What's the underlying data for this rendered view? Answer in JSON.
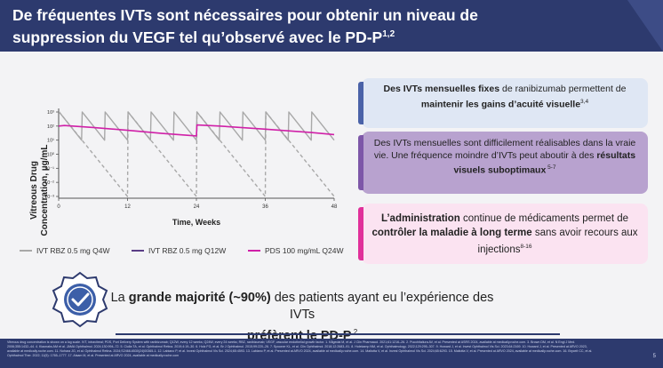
{
  "header": {
    "title_line1": "De fréquentes IVTs sont nécessaires pour obtenir un niveau de",
    "title_line2": "suppression du VEGF tel qu’observé avec le PD-P",
    "title_sup": "1,2"
  },
  "chart_data": {
    "type": "line",
    "ylabel_line1": "Vitreous Drug",
    "ylabel_line2": "Concentration, µg/mL",
    "xlabel": "Time, Weeks",
    "y_scale": "log",
    "ylim": [
      0.001,
      1000
    ],
    "xlim": [
      0,
      48
    ],
    "x_ticks": [
      "0",
      "12",
      "24",
      "36",
      "48"
    ],
    "y_ticks": [
      "10³",
      "10²",
      "10¹",
      "10⁰",
      "10⁻¹",
      "10⁻²",
      "10⁻³"
    ],
    "series": [
      {
        "name": "IVT RBZ 0.5 mg Q4W",
        "color": "#a8a8a8",
        "style": "solid",
        "x": [
          0,
          0.1,
          4,
          4.1,
          8,
          8.1,
          12,
          12.1,
          16,
          16.1,
          20,
          20.1,
          24,
          24.1,
          28,
          28.1,
          32,
          32.1,
          36,
          36.1,
          40,
          40.1,
          44,
          44.1,
          48
        ],
        "y": [
          1000,
          1000,
          10,
          1000,
          10,
          1000,
          10,
          1000,
          10,
          1000,
          10,
          1000,
          10,
          1000,
          10,
          1000,
          10,
          1000,
          10,
          1000,
          10,
          1000,
          10,
          1000,
          10
        ]
      },
      {
        "name": "IVT RBZ 0.5 mg Q12W",
        "color": "#a8a8a8",
        "style": "dashed",
        "x": [
          0,
          0.1,
          12,
          12.1,
          24,
          24.1,
          36,
          36.1,
          48
        ],
        "y": [
          1000,
          1000,
          0.001,
          1000,
          0.001,
          1000,
          0.001,
          1000,
          0.001
        ]
      },
      {
        "name": "PDS 100 mg/mL Q24W",
        "color": "#d020a8",
        "style": "solid",
        "x": [
          0,
          1,
          6,
          12,
          18,
          24,
          24.1,
          28,
          36,
          44,
          48
        ],
        "y": [
          100,
          110,
          80,
          50,
          30,
          20,
          120,
          100,
          60,
          35,
          25
        ]
      }
    ],
    "legend_colors": [
      "#a8a8a8",
      "#5a3d86",
      "#d020a8"
    ]
  },
  "boxes": {
    "box1": {
      "b1": "Des IVTs mensuelles fixes",
      "t1": " de ranibizumab permettent de ",
      "b2": "maintenir les gains d’acuité visuelle",
      "sup": "3,4"
    },
    "box2": {
      "t1": "Des IVTs mensuelles sont difficilement réalisables dans la vraie vie. Une fréquence moindre d’IVTs peut aboutir à des ",
      "b1": "résultats visuels suboptimaux",
      "sup": " 5-7"
    },
    "box3": {
      "b1": "L’administration",
      "t1": " continue de médicaments permet de ",
      "b2": "contrôler la maladie à long terme",
      "t2": " sans avoir recours aux injections",
      "sup": "8-16"
    }
  },
  "bottom": {
    "t1": "La ",
    "b1": "grande majorité (~90%)",
    "t2": " des patients ayant eu l’expérience des IVTs",
    "b2": "préfèrent le PD-P",
    "sup": " 2",
    "badge_icon": "award-check-icon"
  },
  "footnotes": {
    "text": "Vitreous drug concentration is shown on a log scale. IVT, intravitreal; PDS, Port Delivery System with ranibizumab; Q12W, every 12 weeks; Q24W, every 24 weeks; RBZ, ranibizumab; VEGF, vascular endothelial growth factor. 1. Kågedal M, et al. J Clin Pharmacol. 2021;61:1216–26. 2. Pucchitaliura AV, et al. Presented at ASRS 2024, available at medically.roche.com. 3. Brown DM, et al. N Engl J Med. 2006;355:1432–44. 4. Kiaonaks AM et al. JAMA Ophthalmol. 2024;130:994–72. 5. Ciulla TA, et al. Ophthalmol Retina. 2019;4:19–30. 6. Holz FG, et al. Br J Ophthalmol. 2015;99:220–26. 7. Spooner KL, et al. Clin Ophthalmol. 2018;12:2683–91. 8. Holekamp NM, et al. Ophthalmology. 2022;129:295–307. 9. Howard J, et al. Invest Ophthalmol Vis Sci. 2023;64:2169. 10. Howard J, et al. Presented at ARVO 2023, available at medically.roche.com. 11. Nohara JG, et al. Ophthalmol Retina. 2024;S2468-6530(24)00365-1. 12. Labiano P, et al. Invest Ophthalmol Vis Sci. 2024;65:4593. 13. Labiano P, et al. Presented at ARVO 2024, available at medically.roche.com. 14. Maltotta V, et al. Invest Ophthalmol Vis Sci. 2024;65:6293. 15. Maltotta V, et al. Presented at ARVO 2024, available at medically.roche.com. 16. Bryceit CC, et al. Ophthalmol Ther. 2022; 11(5): 1765–1777. 17. Alsam M, et al. Presented at ARVO 2024, available at medically.roche.com",
    "page": "5"
  }
}
